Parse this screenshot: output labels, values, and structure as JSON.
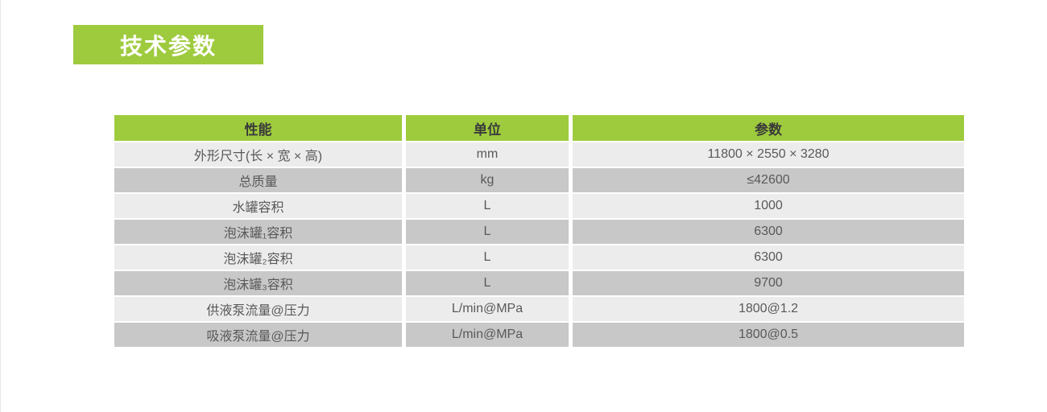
{
  "page": {
    "title_badge": "技术参数"
  },
  "colors": {
    "accent_green": "#9ecb3e",
    "row_light": "#ececec",
    "row_dark": "#c8c8c8",
    "header_text": "#3a3a3a",
    "cell_text": "#595959",
    "title_text": "#ffffff"
  },
  "table": {
    "columns": [
      "性能",
      "单位",
      "参数"
    ],
    "rows": [
      {
        "name": "外形尺寸(长 × 宽 × 高)",
        "unit": "mm",
        "value": "11800 × 2550 × 3280"
      },
      {
        "name": "总质量",
        "unit": "kg",
        "value": "≤42600"
      },
      {
        "name": "水罐容积",
        "unit": "L",
        "value": "1000"
      },
      {
        "name": "泡沫罐₁容积",
        "unit": "L",
        "value": "6300"
      },
      {
        "name": "泡沫罐₂容积",
        "unit": "L",
        "value": "6300"
      },
      {
        "name": "泡沫罐₃容积",
        "unit": "L",
        "value": "9700"
      },
      {
        "name": "供液泵流量@压力",
        "unit": "L/min@MPa",
        "value": "1800@1.2"
      },
      {
        "name": "吸液泵流量@压力",
        "unit": "L/min@MPa",
        "value": "1800@0.5"
      }
    ]
  }
}
